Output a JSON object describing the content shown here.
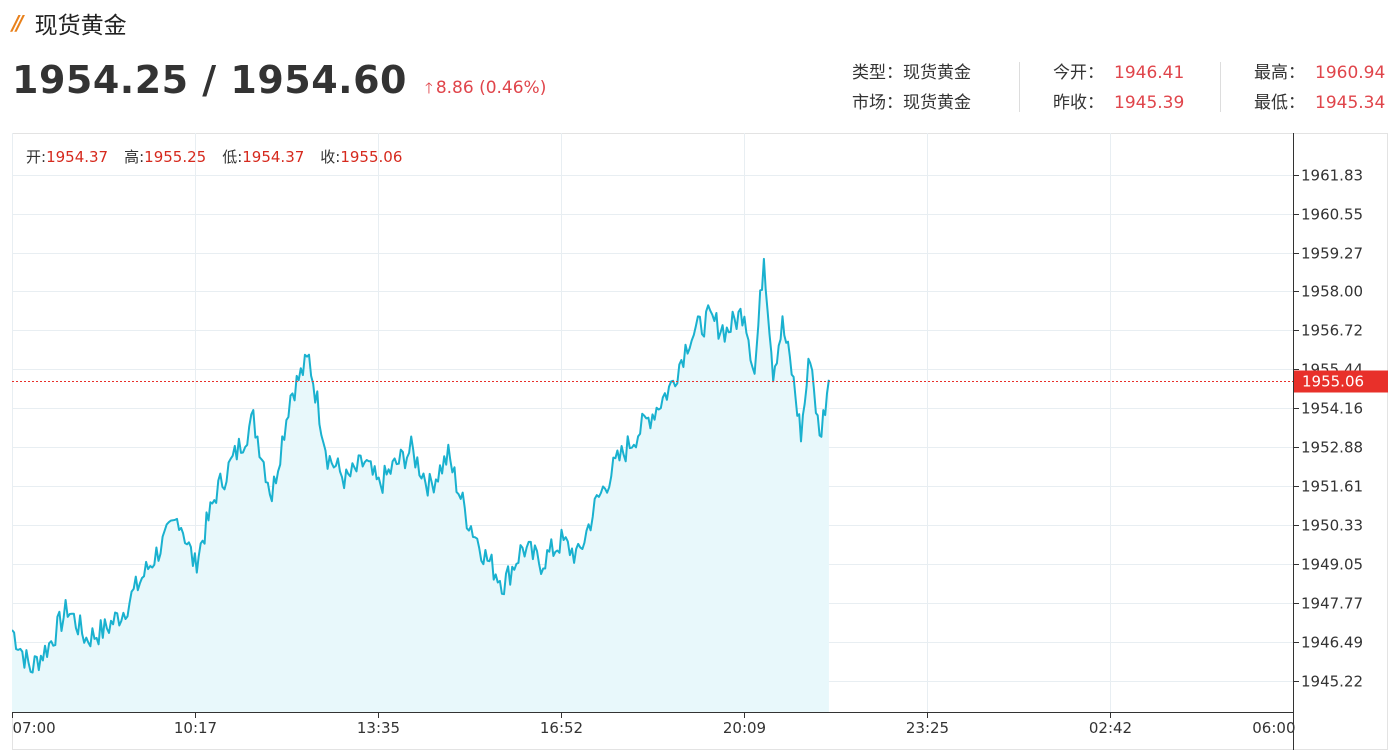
{
  "header": {
    "title": "现货黄金",
    "price": "1954.25 / 1954.60",
    "change": "8.86 (0.46%)"
  },
  "info": {
    "type_label": "类型：",
    "type_value": "现货黄金",
    "market_label": "市场：",
    "market_value": "现货黄金",
    "open_label": "今开：",
    "open_value": "1946.41",
    "prev_close_label": "昨收：",
    "prev_close_value": "1945.39",
    "high_label": "最高：",
    "high_value": "1960.94",
    "low_label": "最低：",
    "low_value": "1945.34"
  },
  "ohlc": {
    "open_label": "开:",
    "open_value": "1954.37",
    "high_label": "高:",
    "high_value": "1955.25",
    "low_label": "低:",
    "low_value": "1954.37",
    "close_label": "收:",
    "close_value": "1955.06"
  },
  "chart_data": {
    "type": "area",
    "x_ticks": [
      "07:00",
      "10:17",
      "13:35",
      "16:52",
      "20:09",
      "23:25",
      "02:42",
      "06:00"
    ],
    "y_ticks": [
      1961.83,
      1960.55,
      1959.27,
      1958.0,
      1956.72,
      1955.44,
      1954.16,
      1952.88,
      1951.61,
      1950.33,
      1949.05,
      1947.77,
      1946.49,
      1945.22
    ],
    "y_tick_labels": [
      "1961.83",
      "1960.55",
      "1959.27",
      "1958.00",
      "1956.72",
      "1955.44",
      "1954.16",
      "1952.88",
      "1951.61",
      "1950.33",
      "1949.05",
      "1947.77",
      "1946.49",
      "1945.22"
    ],
    "current_value": 1955.06,
    "current_label": "1955.06",
    "series": [
      {
        "x": [
          "07:00",
          "07:20",
          "07:40",
          "08:00",
          "08:20",
          "08:40",
          "09:00",
          "09:20",
          "09:40",
          "10:00",
          "10:17",
          "10:40",
          "11:00",
          "11:20",
          "11:40",
          "12:00",
          "12:20",
          "12:40",
          "13:00",
          "13:20",
          "13:35",
          "13:50",
          "14:10",
          "14:30",
          "14:50",
          "15:10",
          "15:30",
          "15:50",
          "16:10",
          "16:30",
          "16:52",
          "17:10",
          "17:30",
          "17:50",
          "18:10",
          "18:30",
          "18:50",
          "19:10",
          "19:30",
          "19:50",
          "20:09",
          "20:20",
          "20:30",
          "20:40",
          "20:50",
          "21:00",
          "21:10",
          "21:20",
          "21:30",
          "21:40"
        ],
        "values": [
          1946.9,
          1945.6,
          1946.4,
          1947.6,
          1946.6,
          1946.9,
          1947.5,
          1948.6,
          1949.6,
          1950.6,
          1949.0,
          1951.4,
          1952.6,
          1953.8,
          1951.3,
          1954.6,
          1955.8,
          1952.6,
          1951.8,
          1952.4,
          1951.6,
          1952.2,
          1952.8,
          1951.6,
          1952.6,
          1950.6,
          1949.3,
          1948.4,
          1949.6,
          1949.1,
          1949.8,
          1949.3,
          1951.1,
          1952.3,
          1953.2,
          1954.0,
          1954.9,
          1956.5,
          1957.1,
          1956.7,
          1957.4,
          1955.3,
          1959.2,
          1955.4,
          1956.9,
          1955.4,
          1953.3,
          1956.0,
          1953.1,
          1955.1
        ]
      }
    ],
    "line_color": "#1ab1cf",
    "fill_color": "#e8f8fb",
    "current_line_color": "#e8302a",
    "grid": true
  }
}
